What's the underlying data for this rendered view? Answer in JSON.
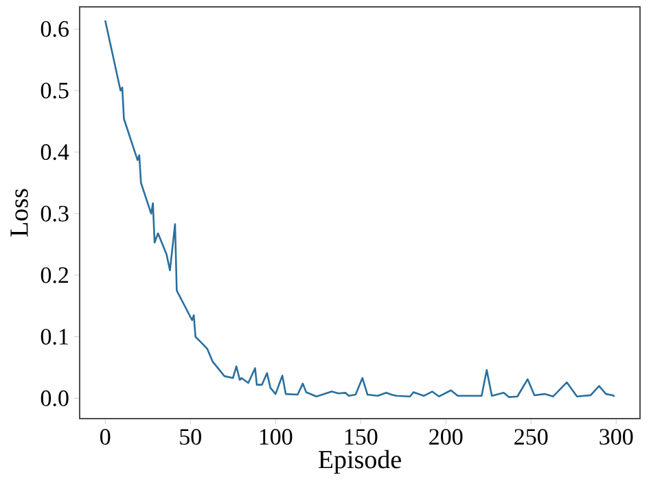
{
  "chart_data": {
    "type": "line",
    "xlabel": "Episode",
    "ylabel": "Loss",
    "xlim": [
      -15,
      314
    ],
    "ylim": [
      -0.033,
      0.636
    ],
    "xticks": [
      0,
      50,
      100,
      150,
      200,
      250,
      300
    ],
    "yticks": [
      {
        "value": 0.0,
        "label": "0.0"
      },
      {
        "value": 0.1,
        "label": "0.1"
      },
      {
        "value": 0.2,
        "label": "0.2"
      },
      {
        "value": 0.3,
        "label": "0.3"
      },
      {
        "value": 0.4,
        "label": "0.4"
      },
      {
        "value": 0.5,
        "label": "0.5"
      },
      {
        "value": 0.6,
        "label": "0.6"
      }
    ],
    "marker": "none",
    "line_style": "solid",
    "series": [
      {
        "color": "#2a6f9e",
        "x": [
          0,
          9,
          10,
          11,
          19,
          20,
          21,
          27,
          28,
          29,
          31,
          36,
          38,
          41,
          42,
          51,
          52,
          53,
          57,
          60,
          63,
          70,
          75,
          77,
          79,
          80,
          84,
          88,
          89,
          92,
          95,
          97,
          100,
          104,
          106,
          113,
          116,
          118,
          124,
          133,
          137,
          141,
          143,
          147,
          151,
          154,
          160,
          165,
          168,
          171,
          179,
          181,
          187,
          192,
          196,
          203,
          207,
          213,
          221,
          224,
          227,
          234,
          237,
          242,
          248,
          252,
          258,
          263,
          271,
          277,
          285,
          290,
          294,
          298,
          299
        ],
        "values": [
          0.614,
          0.5,
          0.505,
          0.454,
          0.387,
          0.395,
          0.35,
          0.3,
          0.317,
          0.253,
          0.268,
          0.234,
          0.208,
          0.283,
          0.175,
          0.127,
          0.135,
          0.1,
          0.089,
          0.08,
          0.06,
          0.036,
          0.033,
          0.052,
          0.03,
          0.033,
          0.025,
          0.049,
          0.022,
          0.022,
          0.041,
          0.017,
          0.007,
          0.037,
          0.007,
          0.006,
          0.024,
          0.01,
          0.003,
          0.011,
          0.008,
          0.009,
          0.004,
          0.006,
          0.033,
          0.006,
          0.004,
          0.009,
          0.006,
          0.004,
          0.003,
          0.01,
          0.004,
          0.011,
          0.003,
          0.013,
          0.004,
          0.004,
          0.004,
          0.046,
          0.004,
          0.009,
          0.002,
          0.003,
          0.031,
          0.005,
          0.007,
          0.003,
          0.026,
          0.003,
          0.005,
          0.02,
          0.007,
          0.005,
          0.003
        ]
      }
    ]
  }
}
